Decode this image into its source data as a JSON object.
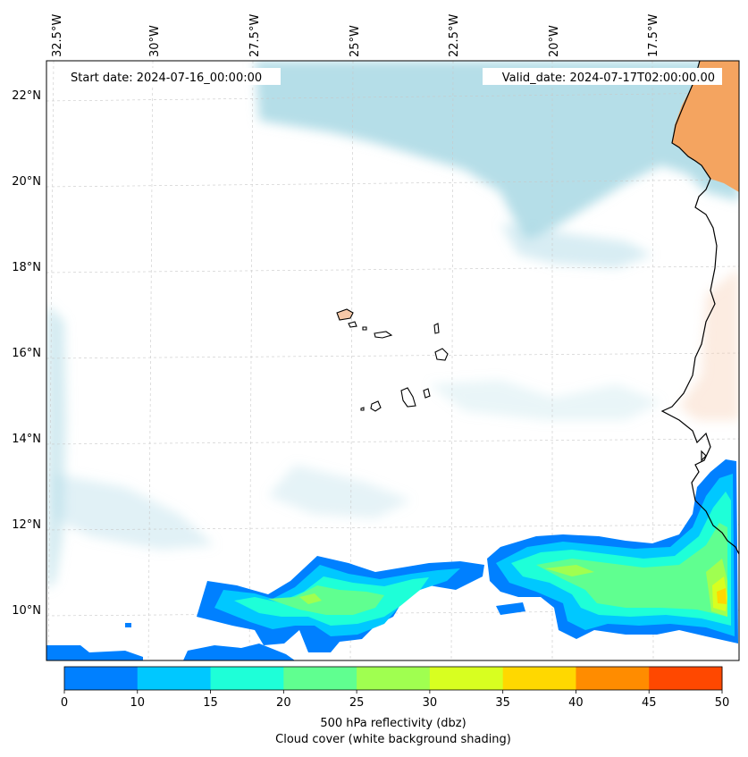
{
  "map": {
    "header": {
      "start_date": "Start date: 2024-07-16_00:00:00",
      "valid_date": "Valid_date: 2024-07-17T02:00:00.00"
    },
    "longitude_labels": [
      "32.5°W",
      "30°W",
      "27.5°W",
      "25°W",
      "22.5°W",
      "20°W",
      "17.5°W"
    ],
    "latitude_labels": [
      "22°N",
      "20°N",
      "18°N",
      "16°N",
      "14°N",
      "12°N",
      "10°N"
    ]
  },
  "colorbar": {
    "ticks": [
      "0",
      "10",
      "15",
      "20",
      "25",
      "30",
      "35",
      "40",
      "45",
      "50"
    ],
    "colors": [
      "#0080ff",
      "#00c8ff",
      "#1effd8",
      "#60ff90",
      "#a0ff50",
      "#d8ff20",
      "#ffd800",
      "#ff8c00",
      "#ff4800"
    ],
    "label": "500 hPa reflectivity (dbz)",
    "sublabel": "Cloud cover (white background shading)"
  },
  "colors": {
    "land_orange": "#f4a460",
    "cloud_blue": "#a8d8e4",
    "grid": "#c8c8c8"
  }
}
